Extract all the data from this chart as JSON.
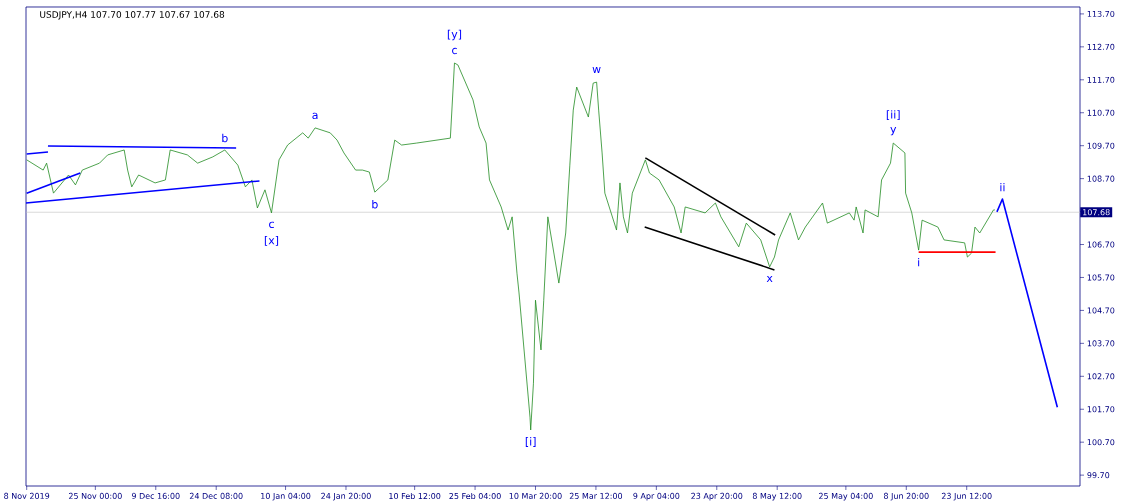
{
  "chart_data": {
    "type": "line",
    "title": "USDJPY,H4  107.70 107.77 107.67 107.68",
    "xlim": [
      "2019-11-08T04:00",
      "2020-07-21T00:00"
    ],
    "ylim": [
      99.37,
      113.91
    ],
    "xticks": [
      {
        "value": "2019-11-08T08:00",
        "label": "8 Nov 2019"
      },
      {
        "value": "2019-11-25T00:00",
        "label": "25 Nov 00:00"
      },
      {
        "value": "2019-12-09T16:00",
        "label": "9 Dec 16:00"
      },
      {
        "value": "2019-12-24T08:00",
        "label": "24 Dec 08:00"
      },
      {
        "value": "2020-01-10T04:00",
        "label": "10 Jan 04:00"
      },
      {
        "value": "2020-01-24T20:00",
        "label": "24 Jan 20:00"
      },
      {
        "value": "2020-02-10T12:00",
        "label": "10 Feb 12:00"
      },
      {
        "value": "2020-02-25T04:00",
        "label": "25 Feb 04:00"
      },
      {
        "value": "2020-03-10T20:00",
        "label": "10 Mar 20:00"
      },
      {
        "value": "2020-03-25T12:00",
        "label": "25 Mar 12:00"
      },
      {
        "value": "2020-04-09T04:00",
        "label": "9 Apr 04:00"
      },
      {
        "value": "2020-04-23T20:00",
        "label": "23 Apr 20:00"
      },
      {
        "value": "2020-05-08T12:00",
        "label": "8 May 12:00"
      },
      {
        "value": "2020-05-25T04:00",
        "label": "25 May 04:00"
      },
      {
        "value": "2020-06-08T20:00",
        "label": "8 Jun 20:00"
      },
      {
        "value": "2020-06-23T12:00",
        "label": "23 Jun 12:00"
      }
    ],
    "yticks": [
      {
        "value": 99.7,
        "label": "99.70"
      },
      {
        "value": 100.7,
        "label": "100.70"
      },
      {
        "value": 101.7,
        "label": "101.70"
      },
      {
        "value": 102.7,
        "label": "102.70"
      },
      {
        "value": 103.7,
        "label": "103.70"
      },
      {
        "value": 104.7,
        "label": "104.70"
      },
      {
        "value": 105.7,
        "label": "105.70"
      },
      {
        "value": 106.7,
        "label": "106.70"
      },
      {
        "value": 107.7,
        "label": null
      },
      {
        "value": 108.7,
        "label": "108.70"
      },
      {
        "value": 109.7,
        "label": "109.70"
      },
      {
        "value": 110.7,
        "label": "110.70"
      },
      {
        "value": 111.7,
        "label": "111.70"
      },
      {
        "value": 112.7,
        "label": "112.70"
      },
      {
        "value": 113.7,
        "label": "113.70"
      }
    ],
    "series": [
      {
        "color": "#228b22",
        "x": [
          "2019-11-08T08:00",
          "2019-11-12T08:00",
          "2019-11-13T04:00",
          "2019-11-14T20:00",
          "2019-11-18T12:00",
          "2019-11-20T04:00",
          "2019-11-21T20:00",
          "2019-11-26T00:00",
          "2019-11-28T00:00",
          "2019-12-02T00:00",
          "2019-12-02T20:00",
          "2019-12-03T20:00",
          "2019-12-05T12:00",
          "2019-12-09T12:00",
          "2019-12-12T00:00",
          "2019-12-13T04:00",
          "2019-12-17T08:00",
          "2019-12-19T20:00",
          "2019-12-23T12:00",
          "2019-12-26T10:00",
          "2019-12-29T14:00",
          "2019-12-31T10:00",
          "2020-01-02T00:00",
          "2020-01-03T08:00",
          "2020-01-05T04:00",
          "2020-01-06T18:00",
          "2020-01-08T14:00",
          "2020-01-10T16:00",
          "2020-01-14T08:00",
          "2020-01-15T16:00",
          "2020-01-17T08:00",
          "2020-01-21T00:00",
          "2020-01-22T16:00",
          "2020-01-24T08:00",
          "2020-01-27T04:00",
          "2020-01-28T20:00",
          "2020-01-30T12:00",
          "2020-01-31T20:00",
          "2020-02-04T00:00",
          "2020-02-05T16:00",
          "2020-02-07T08:00",
          "2020-02-11T00:00",
          "2020-02-19T04:00",
          "2020-02-20T04:00",
          "2020-02-21T00:00",
          "2020-02-24T16:00",
          "2020-02-26T04:00",
          "2020-02-27T20:00",
          "2020-02-28T16:00",
          "2020-03-02T12:00",
          "2020-03-04T04:00",
          "2020-03-05T04:00",
          "2020-03-06T08:00",
          "2020-03-06T20:00",
          "2020-03-09T12:00",
          "2020-03-09T16:00",
          "2020-03-10T08:00",
          "2020-03-10T20:00",
          "2020-03-12T04:00",
          "2020-03-12T20:00",
          "2020-03-13T20:00",
          "2020-03-16T12:00",
          "2020-03-18T04:00",
          "2020-03-19T04:00",
          "2020-03-20T00:00",
          "2020-03-20T20:00",
          "2020-03-23T16:00",
          "2020-03-24T20:00",
          "2020-03-25T16:00",
          "2020-03-26T04:00",
          "2020-03-27T00:00",
          "2020-03-27T16:00",
          "2020-03-30T12:00",
          "2020-03-31T08:00",
          "2020-04-01T04:00",
          "2020-04-02T04:00",
          "2020-04-03T08:00",
          "2020-04-06T12:00",
          "2020-04-07T12:00",
          "2020-04-09T20:00",
          "2020-04-13T12:00",
          "2020-04-15T04:00",
          "2020-04-16T04:00",
          "2020-04-21T00:00",
          "2020-04-23T12:00",
          "2020-04-24T20:00",
          "2020-04-29T04:00",
          "2020-05-01T00:00",
          "2020-05-04T12:00",
          "2020-05-06T16:00",
          "2020-05-07T20:00",
          "2020-05-08T20:00",
          "2020-05-11T16:00",
          "2020-05-13T16:00",
          "2020-05-15T08:00",
          "2020-05-19T12:00",
          "2020-05-20T16:00",
          "2020-05-26T00:00",
          "2020-05-27T04:00",
          "2020-05-27T16:00",
          "2020-05-29T08:00",
          "2020-05-29T20:00",
          "2020-06-02T00:00",
          "2020-06-02T20:00",
          "2020-06-05T00:00",
          "2020-06-05T16:00",
          "2020-06-08T12:00",
          "2020-06-08T16:00",
          "2020-06-10T04:00",
          "2020-06-11T20:00",
          "2020-06-12T16:00",
          "2020-06-16T12:00",
          "2020-06-18T00:00",
          "2020-06-23T00:00",
          "2020-06-23T16:00",
          "2020-06-24T16:00",
          "2020-06-25T12:00",
          "2020-06-26T16:00",
          "2020-06-30T00:00",
          "2020-06-30T08:00"
        ],
        "values": [
          109.27,
          108.96,
          109.17,
          108.26,
          108.81,
          108.51,
          108.96,
          109.17,
          109.42,
          109.57,
          108.96,
          108.45,
          108.81,
          108.57,
          108.66,
          109.57,
          109.42,
          109.17,
          109.36,
          109.57,
          109.11,
          108.45,
          108.66,
          107.81,
          108.36,
          107.66,
          109.27,
          109.72,
          110.09,
          109.93,
          110.24,
          110.09,
          109.87,
          109.48,
          108.96,
          108.96,
          108.9,
          108.29,
          108.66,
          109.87,
          109.72,
          109.78,
          109.93,
          112.21,
          112.15,
          111.09,
          110.27,
          109.78,
          108.66,
          107.84,
          107.14,
          107.54,
          105.83,
          105.23,
          101.46,
          101.07,
          102.49,
          105.01,
          103.5,
          105.01,
          107.54,
          105.53,
          107.05,
          109.11,
          110.78,
          111.48,
          110.57,
          111.6,
          111.63,
          110.78,
          109.48,
          108.26,
          107.14,
          108.57,
          107.54,
          107.05,
          108.26,
          109.27,
          108.87,
          108.66,
          107.84,
          107.05,
          107.84,
          107.66,
          107.96,
          107.54,
          106.63,
          107.35,
          106.84,
          106.02,
          106.32,
          106.84,
          107.66,
          106.84,
          107.23,
          107.96,
          107.35,
          107.66,
          107.44,
          107.84,
          107.05,
          107.75,
          107.54,
          108.66,
          109.17,
          109.78,
          109.48,
          108.26,
          107.66,
          106.53,
          107.44,
          107.23,
          106.84,
          106.75,
          106.32,
          106.44,
          107.23,
          107.05,
          107.75,
          107.75
        ]
      },
      {
        "color": "#0000ff",
        "x": [
          "2019-11-13T12:00",
          "2019-12-29T04:00"
        ],
        "values": [
          109.69,
          109.63
        ]
      },
      {
        "color": "#0000ff",
        "x": [
          "2019-11-08T04:00",
          "2020-01-03T20:00"
        ],
        "values": [
          107.96,
          108.63
        ]
      },
      {
        "color": "#0000ff",
        "x": [
          "2019-11-08T08:00",
          "2019-11-13T12:00"
        ],
        "values": [
          109.45,
          109.51
        ]
      },
      {
        "color": "#0000ff",
        "x": [
          "2019-11-08T08:00",
          "2019-11-21T08:00"
        ],
        "values": [
          108.26,
          108.87
        ]
      },
      {
        "color": "#000000",
        "x": [
          "2020-04-06T12:00",
          "2020-05-08T00:00"
        ],
        "values": [
          109.33,
          106.99
        ]
      },
      {
        "color": "#000000",
        "x": [
          "2020-04-06T08:00",
          "2020-05-07T20:00"
        ],
        "values": [
          107.23,
          105.93
        ]
      },
      {
        "color": "#ff0000",
        "x": [
          "2020-06-11T20:00",
          "2020-06-30T12:00"
        ],
        "values": [
          106.47,
          106.47
        ]
      },
      {
        "color": "#0000ff",
        "x": [
          "2020-06-30T20:00",
          "2020-07-02T04:00",
          "2020-07-15T12:00"
        ],
        "values": [
          107.69,
          108.08,
          101.76
        ]
      }
    ],
    "ref_lines": [
      {
        "axis": "y",
        "value": 107.68,
        "label": "107.68",
        "color": "#c0c0c0"
      }
    ],
    "annotations": [
      {
        "text": "c",
        "x": "2020-02-20T04:00",
        "y": 112.21
      },
      {
        "text": "[y]",
        "x": "2020-02-20T04:00",
        "y": 112.21
      },
      {
        "text": "w",
        "x": "2020-03-25T16:00",
        "y": 111.63
      },
      {
        "text": "[i]",
        "x": "2020-03-09T16:00",
        "y": 101.07
      },
      {
        "text": "a",
        "x": "2020-01-17T08:00",
        "y": 110.24
      },
      {
        "text": "b",
        "x": "2019-12-26T10:00",
        "y": 109.57
      },
      {
        "text": "b",
        "x": "2020-01-31T20:00",
        "y": 108.29
      },
      {
        "text": "c",
        "x": "2020-01-06T18:00",
        "y": 107.66
      },
      {
        "text": "[x]",
        "x": "2020-01-06T18:00",
        "y": 107.66
      },
      {
        "text": "x",
        "x": "2020-05-06T16:00",
        "y": 106.02
      },
      {
        "text": "y",
        "x": "2020-06-05T16:00",
        "y": 109.78
      },
      {
        "text": "[ii]",
        "x": "2020-06-05T16:00",
        "y": 109.78
      },
      {
        "text": "i",
        "x": "2020-06-11T20:00",
        "y": 106.53
      },
      {
        "text": "ii",
        "x": "2020-07-02T04:00",
        "y": 108.08
      }
    ],
    "marker": "none",
    "line_style": "solid"
  }
}
